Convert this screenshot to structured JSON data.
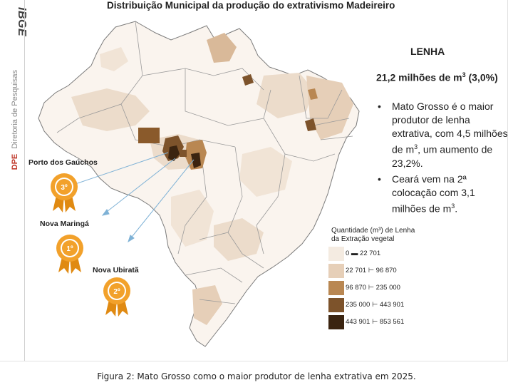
{
  "brand": {
    "logo_text": "IBGE",
    "dept_abbrev": "DPE",
    "dept_name": "Diretoria de Pesquisas"
  },
  "title": "Distribuição Municipal da produção do extrativismo Madeireiro",
  "panel": {
    "heading": "LENHA",
    "total_prefix": "21,2 milhões de m",
    "total_sup": "3",
    "total_suffix": " (3,0%)",
    "bullet1": {
      "a": "Mato Grosso é  o maior produtor de lenha extrativa, com 4,5 milhões de m",
      "sup": "3",
      "b": ", um aumento de 23,2%."
    },
    "bullet2": {
      "a": "Ceará vem na 2ª colocação com 3,1 milhões de m",
      "sup": "3",
      "b": "."
    }
  },
  "legend": {
    "title_line1": "Quantidade  (m³)  de Lenha",
    "title_line2": "da Extração vegetal",
    "classes": [
      {
        "range": "0    ▬  22 701",
        "color": "#f4ebe1"
      },
      {
        "range": "22 701   ⊢  96 870",
        "color": "#e6cfb8"
      },
      {
        "range": "96 870   ⊢  235 000",
        "color": "#b98752"
      },
      {
        "range": "235 000   ⊢  443 901",
        "color": "#7d532b"
      },
      {
        "range": "443 901   ⊢  853 561",
        "color": "#3b2410"
      }
    ]
  },
  "rankings": [
    {
      "place": "Porto dos Gaúchos",
      "rank": "3º"
    },
    {
      "place": "Nova Maringá",
      "rank": "1º"
    },
    {
      "place": "Nova Ubiratã",
      "rank": "2º"
    }
  ],
  "colors": {
    "medal": "#f2a12b",
    "medal_dark": "#e08a12",
    "arrow": "#7fb2d6",
    "map_base": "#faf4ee",
    "border": "#7a7a7a"
  },
  "caption": "Figura 2: Mato Grosso como o maior produtor de lenha extrativa em 2025."
}
